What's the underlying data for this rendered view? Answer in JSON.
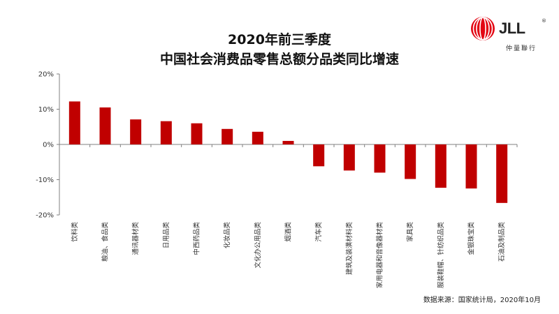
{
  "header": {
    "title_line1": "2020年前三季度",
    "title_line2": "中国社会消费品零售总额分品类同比增速"
  },
  "logo": {
    "brand": "JLL",
    "reg_mark": "®",
    "chinese_name": "仲量聯行",
    "color": "#e30613"
  },
  "source": "数据来源：国家统计局，2020年10月",
  "chart_data": {
    "type": "bar",
    "title": "2020年前三季度 中国社会消费品零售总额分品类同比增速",
    "xlabel": "",
    "ylabel": "",
    "ylim": [
      -20,
      20
    ],
    "yticks": [
      20,
      10,
      0,
      -10,
      -20
    ],
    "ytick_labels": [
      "20%",
      "10%",
      "0%",
      "-10%",
      "-20%"
    ],
    "bar_color": "#c00000",
    "categories": [
      "饮料类",
      "粮油、食品类",
      "通讯器材类",
      "日用品类",
      "中西药品类",
      "化妆品类",
      "文化办公用品类",
      "烟酒类",
      "汽车类",
      "建筑及装潢材料类",
      "家用电器和音像器材类",
      "家具类",
      "服装鞋帽、针纺织品类",
      "金银珠宝类",
      "石油及制品类"
    ],
    "values": [
      12.2,
      10.5,
      7.1,
      6.6,
      6.0,
      4.4,
      3.6,
      1.0,
      -6.2,
      -7.4,
      -8.0,
      -9.8,
      -12.3,
      -12.5,
      -16.6
    ]
  }
}
